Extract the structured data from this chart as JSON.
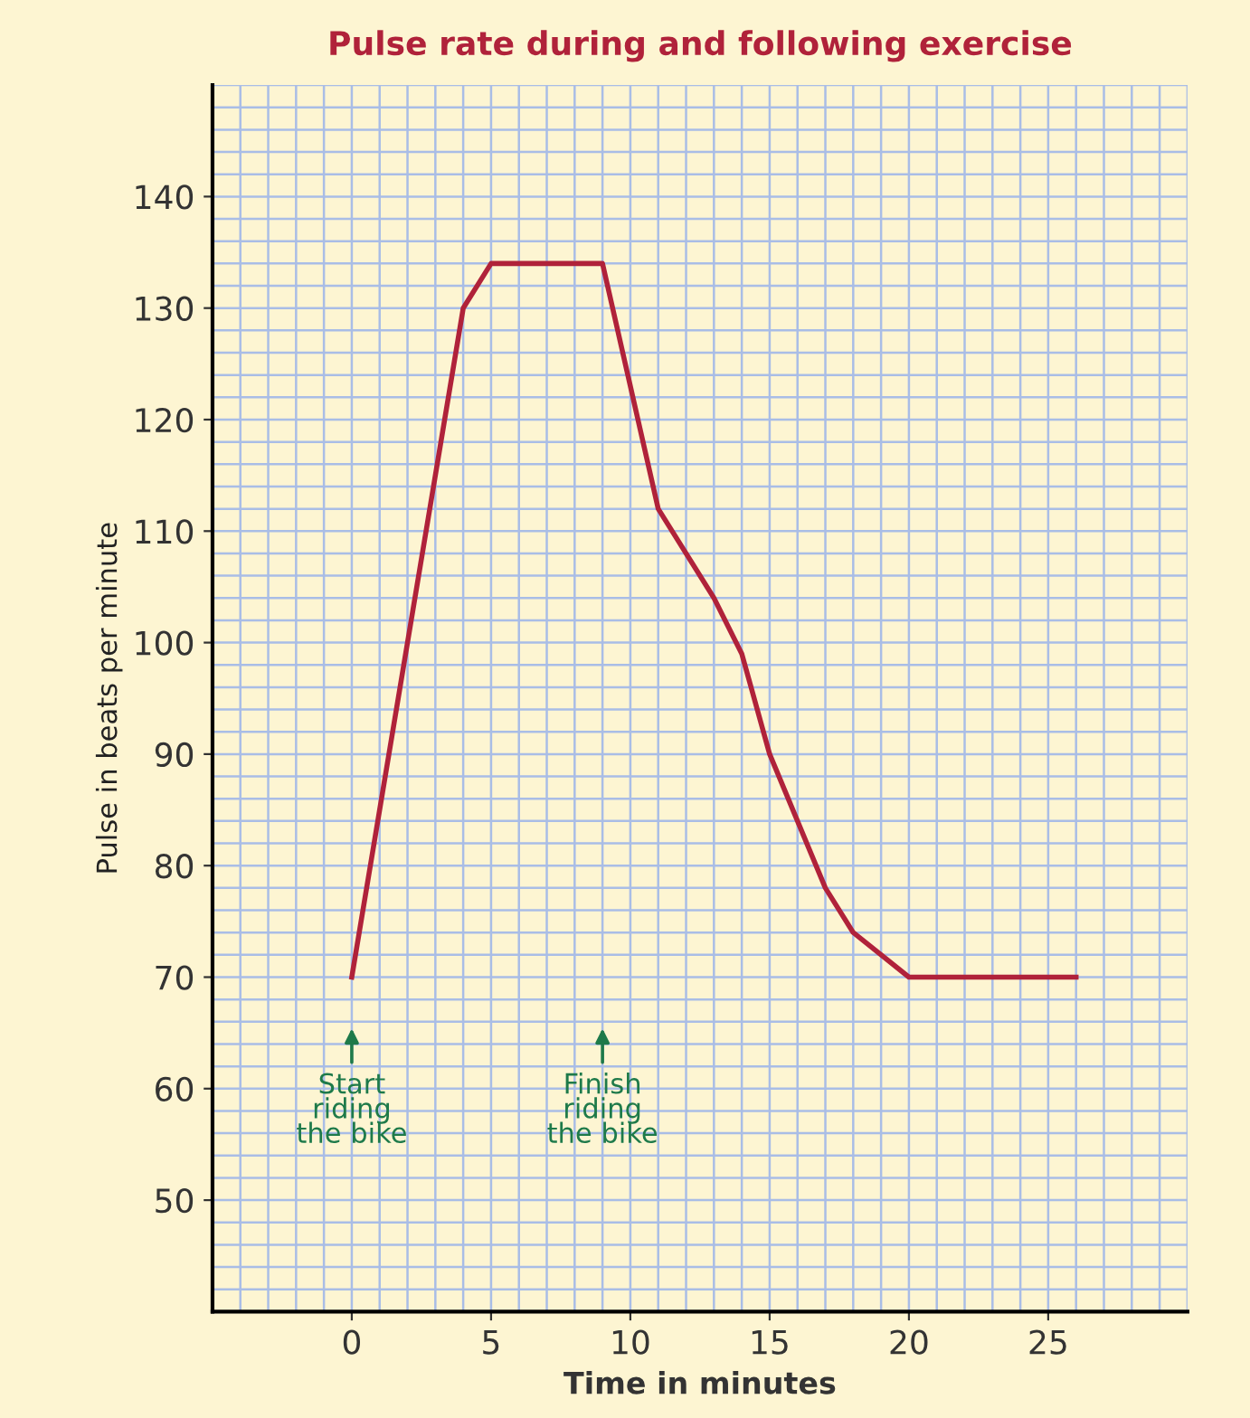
{
  "chart_data": {
    "type": "line",
    "title": "Pulse rate during and following exercise",
    "xlabel": "Time in minutes",
    "ylabel": "Pulse in beats per minute",
    "series": [
      {
        "x": [
          0,
          4,
          5,
          9,
          11,
          13,
          14,
          15,
          17,
          18,
          20,
          26
        ],
        "values": [
          70,
          130,
          134,
          134,
          112,
          104,
          99,
          90,
          78,
          74,
          70,
          70
        ],
        "color": "#b0223a"
      }
    ],
    "annotations": [
      {
        "text": "Start\nriding\nthe bike",
        "x": 0
      },
      {
        "text": "Finish\nriding\nthe bike",
        "x": 9
      }
    ],
    "xlim": [
      -5,
      30
    ],
    "ylim": [
      40,
      150
    ],
    "xticks": [
      0,
      5,
      10,
      15,
      20,
      25
    ],
    "yticks": [
      50,
      60,
      70,
      80,
      90,
      100,
      110,
      120,
      130,
      140
    ],
    "grid": true,
    "line_style": "solid",
    "marker": "none"
  }
}
